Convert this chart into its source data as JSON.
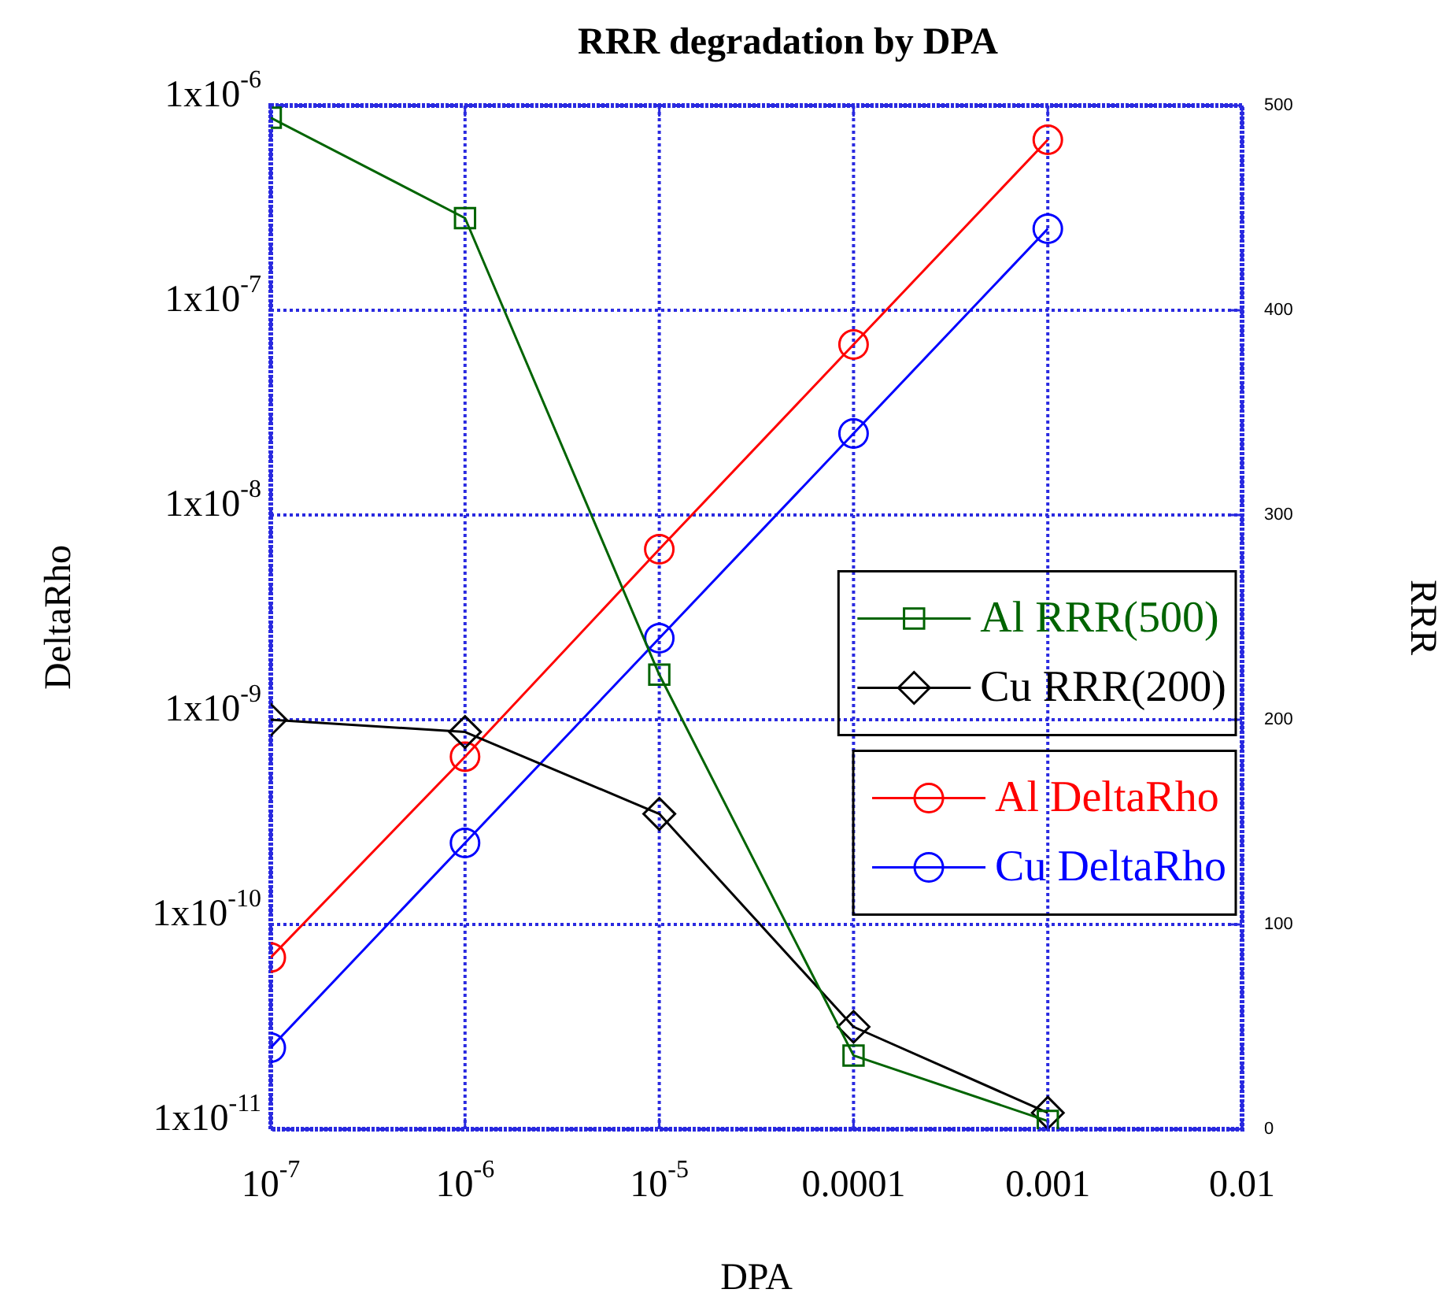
{
  "chart_data": {
    "type": "line",
    "title": "RRR degradation by DPA",
    "xlabel": "DPA",
    "ylabel": "DeltaRho",
    "y2label": "RRR",
    "x": [
      1e-07,
      1e-06,
      1e-05,
      0.0001,
      0.001
    ],
    "series": [
      {
        "name": "Al RRR(500)",
        "color": "#006400",
        "axis": "y2",
        "marker": "square",
        "values": [
          494,
          445,
          222,
          36,
          4
        ]
      },
      {
        "name": "Cu RRR(200)",
        "color": "#000000",
        "axis": "y2",
        "marker": "diamond",
        "values": [
          200,
          194,
          154,
          50,
          8
        ]
      },
      {
        "name": "Al DeltaRho",
        "color": "#ff0000",
        "marker": "circle",
        "values": [
          6.9e-11,
          6.6e-10,
          6.8e-09,
          6.8e-08,
          6.8e-07
        ]
      },
      {
        "name": "Cu DeltaRho",
        "color": "#0000ff",
        "marker": "circle",
        "values": [
          2.5e-11,
          2.5e-10,
          2.5e-09,
          2.5e-08,
          2.5e-07
        ]
      }
    ],
    "log": "xy",
    "grid": true,
    "legend": "right",
    "xlim": [
      1e-07,
      0.01
    ],
    "xticks": [
      {
        "value": 1e-07,
        "label": "10$^{-7}$"
      },
      {
        "value": 1e-06,
        "label": "10$^{-6}$"
      },
      {
        "value": 1e-05,
        "label": "10$^{-5}$"
      },
      0.0001,
      0.001,
      0.01
    ],
    "ylim": [
      1e-11,
      1e-06
    ],
    "yticks": [
      {
        "value": 1e-11,
        "label": "1x10$^{-11}$"
      },
      {
        "value": 1e-10,
        "label": "1x10$^{-10}$"
      },
      {
        "value": 1e-09,
        "label": "1x10$^{-9}$"
      },
      {
        "value": 1e-08,
        "label": "1x10$^{-8}$"
      },
      {
        "value": 1e-07,
        "label": "1x10$^{-7}$"
      },
      {
        "value": 1e-06,
        "label": "1x10$^{-6}$"
      }
    ],
    "y2lim": [
      0,
      500
    ],
    "y2ticks": [
      0,
      100,
      200,
      300,
      400,
      500
    ]
  }
}
